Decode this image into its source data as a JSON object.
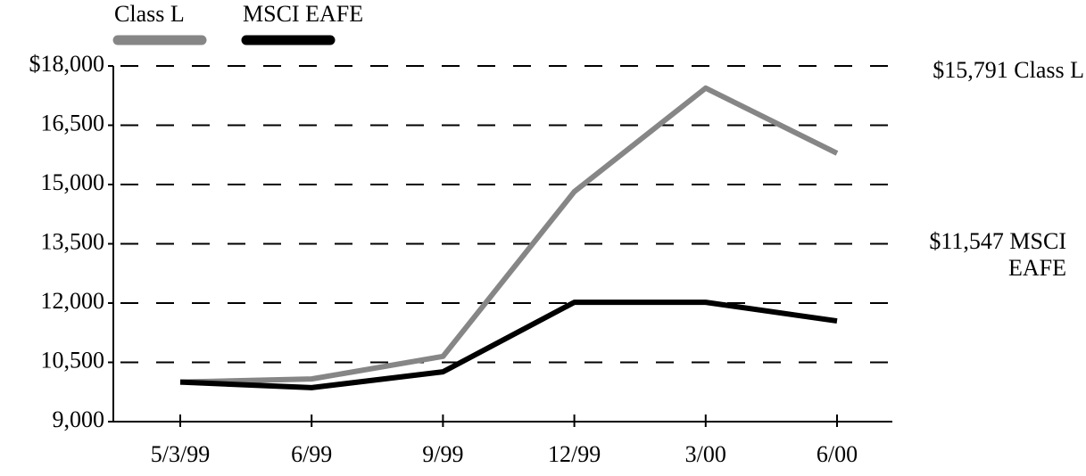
{
  "chart_data": {
    "type": "line",
    "categories": [
      "5/3/99",
      "6/99",
      "9/99",
      "12/99",
      "3/00",
      "6/00"
    ],
    "series": [
      {
        "name": "Class L",
        "color": "#868686",
        "values": [
          10000,
          10080,
          10650,
          14820,
          17440,
          15791
        ]
      },
      {
        "name": "MSCI EAFE",
        "color": "#000000",
        "values": [
          10000,
          9860,
          10260,
          12020,
          12020,
          11547
        ]
      }
    ],
    "ylim": [
      9000,
      18000
    ],
    "yticks": [
      {
        "value": 9000,
        "label": "9,000"
      },
      {
        "value": 10500,
        "label": "10,500"
      },
      {
        "value": 12000,
        "label": "12,000"
      },
      {
        "value": 13500,
        "label": "13,500"
      },
      {
        "value": 15000,
        "label": "15,000"
      },
      {
        "value": 16500,
        "label": "16,500"
      },
      {
        "value": 18000,
        "label": "$18,000"
      }
    ],
    "grid": true,
    "annotations": [
      "$15,791 Class L",
      "$11,547 MSCI EAFE"
    ]
  }
}
